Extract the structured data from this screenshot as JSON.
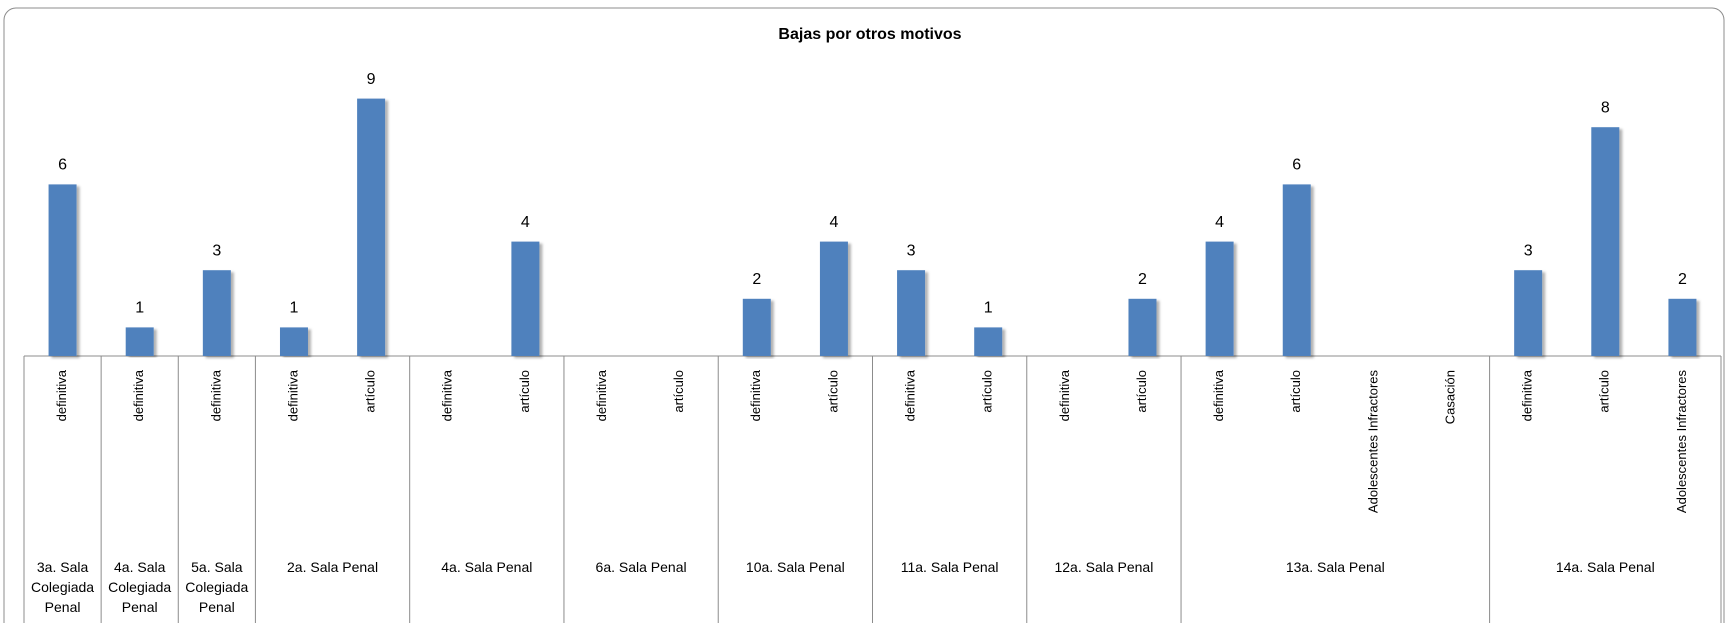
{
  "chart_data": {
    "type": "bar",
    "title": "Bajas por otros motivos",
    "color": "#4f81bd",
    "groups": [
      {
        "name": "3a. Sala Colegiada Penal",
        "categories": [
          "definitiva"
        ],
        "values": [
          6
        ]
      },
      {
        "name": "4a. Sala Colegiada Penal",
        "categories": [
          "definitiva"
        ],
        "values": [
          1
        ]
      },
      {
        "name": "5a. Sala Colegiada Penal",
        "categories": [
          "definitiva"
        ],
        "values": [
          3
        ]
      },
      {
        "name": "2a. Sala Penal",
        "categories": [
          "definitiva",
          "artículo"
        ],
        "values": [
          1,
          9
        ]
      },
      {
        "name": "4a. Sala Penal",
        "categories": [
          "definitiva",
          "artículo"
        ],
        "values": [
          null,
          4
        ]
      },
      {
        "name": "6a. Sala Penal",
        "categories": [
          "definitiva",
          "artículo"
        ],
        "values": [
          null,
          null
        ]
      },
      {
        "name": "10a. Sala Penal",
        "categories": [
          "definitiva",
          "artículo"
        ],
        "values": [
          2,
          4
        ]
      },
      {
        "name": "11a. Sala Penal",
        "categories": [
          "definitiva",
          "artículo"
        ],
        "values": [
          3,
          1
        ]
      },
      {
        "name": "12a. Sala Penal",
        "categories": [
          "definitiva",
          "artículo"
        ],
        "values": [
          null,
          2
        ]
      },
      {
        "name": "13a. Sala Penal",
        "categories": [
          "definitiva",
          "artículo",
          "Adolescentes Infractores",
          "Casación"
        ],
        "values": [
          4,
          6,
          null,
          null
        ]
      },
      {
        "name": "14a. Sala Penal",
        "categories": [
          "definitiva",
          "artículo",
          "Adolescentes Infractores"
        ],
        "values": [
          3,
          8,
          2
        ]
      }
    ]
  }
}
